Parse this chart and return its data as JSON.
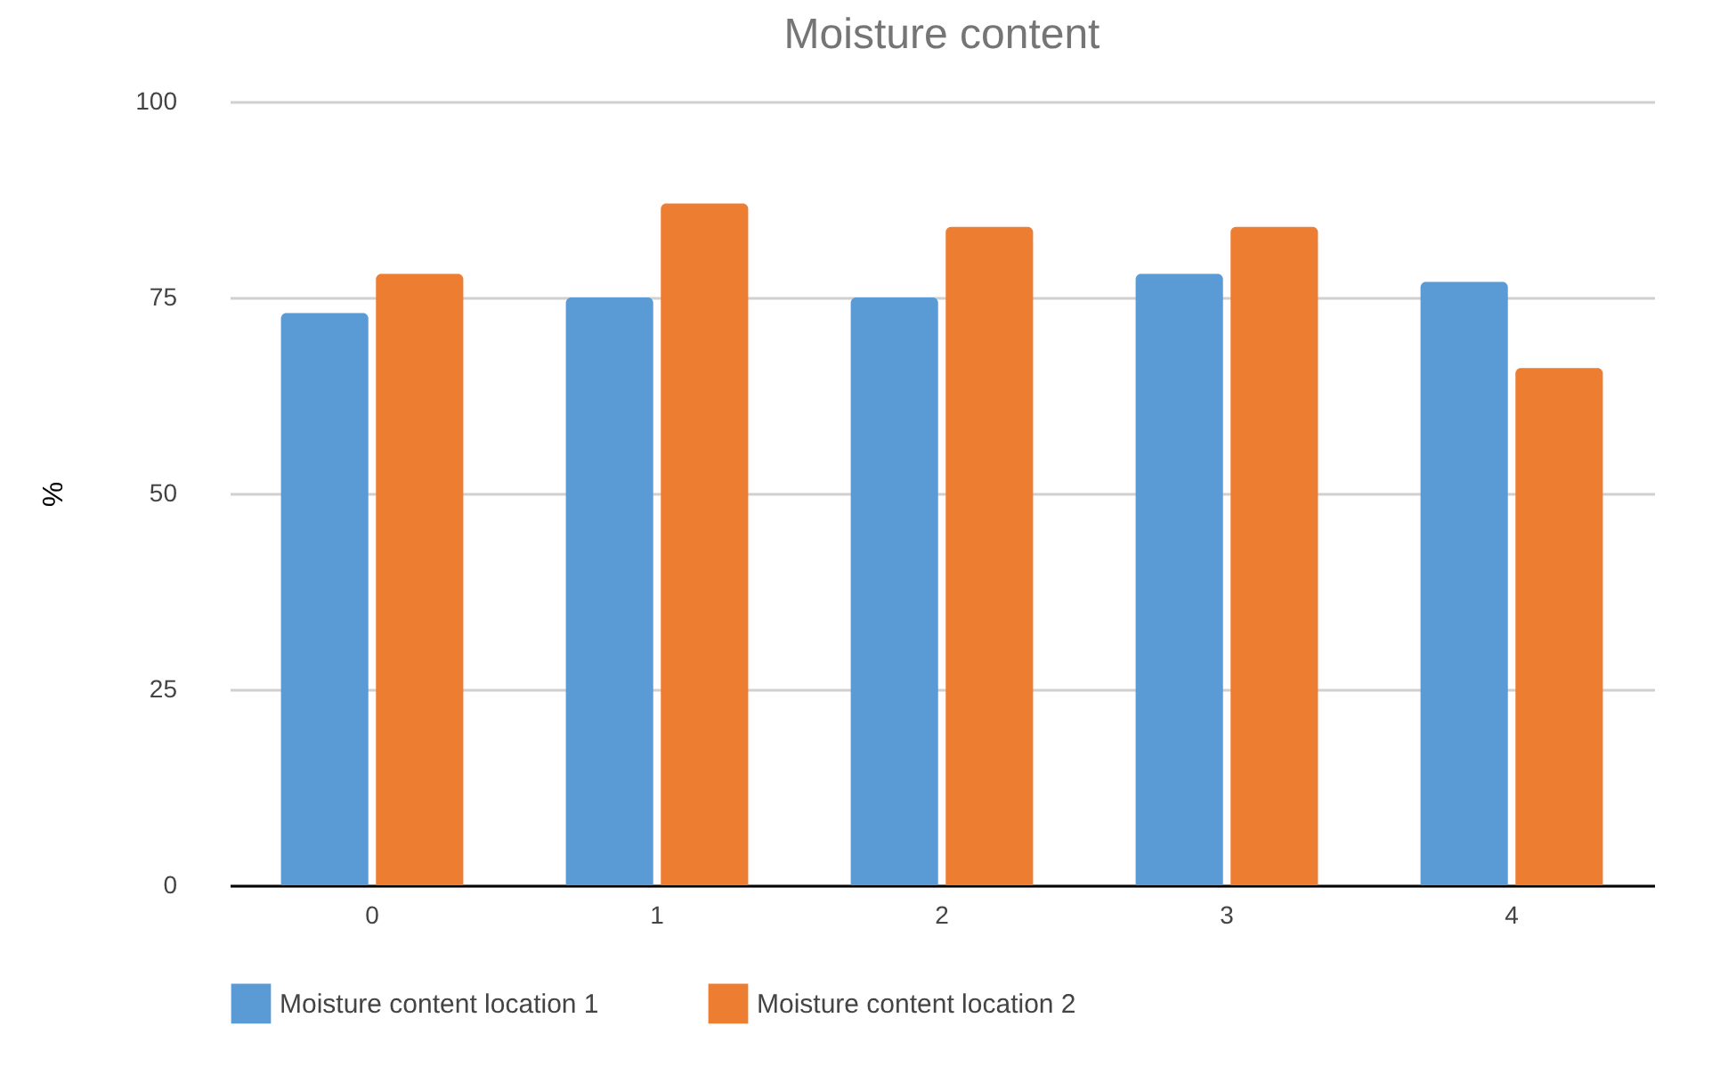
{
  "chart_data": {
    "type": "bar",
    "title": "Moisture content",
    "ylabel": "%",
    "categories": [
      "0",
      "1",
      "2",
      "3",
      "4"
    ],
    "series": [
      {
        "name": "Moisture content location 1",
        "color": "#5b9bd5",
        "values": [
          73,
          75,
          75,
          78,
          77
        ]
      },
      {
        "name": "Moisture content location 2",
        "color": "#ed7d31",
        "values": [
          78,
          87,
          84,
          84,
          66
        ]
      }
    ],
    "ylim": [
      0,
      100
    ],
    "yticks": [
      0,
      25,
      50,
      75,
      100
    ],
    "grid": "y",
    "legend": "bottom"
  }
}
